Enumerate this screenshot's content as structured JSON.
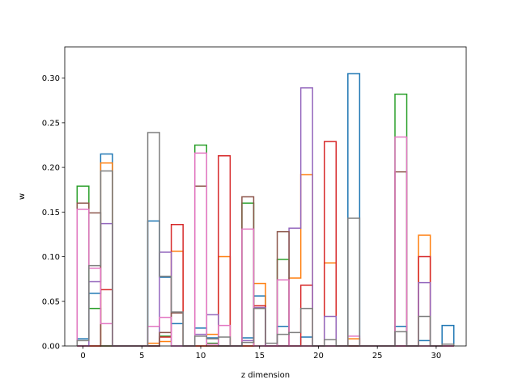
{
  "chart_data": {
    "type": "step",
    "xlabel": "z dimension",
    "ylabel": "w",
    "xlim": [
      -1.55,
      32.55
    ],
    "ylim": [
      0,
      0.335
    ],
    "xticks": [
      0,
      5,
      10,
      15,
      20,
      25,
      30
    ],
    "xtick_labels": [
      "0",
      "5",
      "10",
      "15",
      "20",
      "25",
      "30"
    ],
    "yticks": [
      0.0,
      0.05,
      0.1,
      0.15,
      0.2,
      0.25,
      0.3
    ],
    "ytick_labels": [
      "0.00",
      "0.05",
      "0.10",
      "0.15",
      "0.20",
      "0.25",
      "0.30"
    ],
    "bins": [
      0,
      1,
      2,
      3,
      4,
      5,
      6,
      7,
      8,
      9,
      10,
      11,
      12,
      13,
      14,
      15,
      16,
      17,
      18,
      19,
      20,
      21,
      22,
      23,
      24,
      25,
      26,
      27,
      28,
      29,
      30,
      31
    ],
    "series": [
      {
        "color": "#1f77b4",
        "values": [
          0.008,
          0.059,
          0.215,
          0.0,
          0.0,
          0.0,
          0.14,
          0.077,
          0.025,
          0.0,
          0.02,
          0.009,
          0.0,
          0.0,
          0.009,
          0.056,
          0.0,
          0.022,
          0.0,
          0.01,
          0.0,
          0.0,
          0.0,
          0.305,
          0.0,
          0.0,
          0.0,
          0.022,
          0.0,
          0.006,
          0.0,
          0.023
        ]
      },
      {
        "color": "#ff7f0e",
        "values": [
          0.0,
          0.0,
          0.205,
          0.0,
          0.0,
          0.0,
          0.003,
          0.005,
          0.106,
          0.0,
          0.0,
          0.013,
          0.1,
          0.0,
          0.0,
          0.07,
          0.0,
          0.0,
          0.076,
          0.192,
          0.0,
          0.093,
          0.0,
          0.008,
          0.0,
          0.0,
          0.0,
          0.0,
          0.0,
          0.124,
          0.0,
          0.0
        ]
      },
      {
        "color": "#2ca02c",
        "values": [
          0.179,
          0.042,
          0.0,
          0.0,
          0.0,
          0.0,
          0.0,
          0.011,
          0.0,
          0.0,
          0.225,
          0.003,
          0.0,
          0.0,
          0.16,
          0.0,
          0.0,
          0.097,
          0.0,
          0.0,
          0.0,
          0.0,
          0.0,
          0.0,
          0.0,
          0.0,
          0.0,
          0.282,
          0.0,
          0.0,
          0.0,
          0.0
        ]
      },
      {
        "color": "#d62728",
        "values": [
          0.0,
          0.0,
          0.063,
          0.0,
          0.0,
          0.0,
          0.0,
          0.01,
          0.136,
          0.0,
          0.0,
          0.0,
          0.213,
          0.0,
          0.0,
          0.045,
          0.0,
          0.0,
          0.0,
          0.068,
          0.0,
          0.229,
          0.0,
          0.0,
          0.0,
          0.0,
          0.0,
          0.0,
          0.0,
          0.1,
          0.0,
          0.0
        ]
      },
      {
        "color": "#9467bd",
        "values": [
          0.0,
          0.072,
          0.137,
          0.0,
          0.0,
          0.0,
          0.0,
          0.105,
          0.0,
          0.0,
          0.013,
          0.035,
          0.0,
          0.0,
          0.006,
          0.043,
          0.0,
          0.0,
          0.132,
          0.289,
          0.0,
          0.033,
          0.0,
          0.0,
          0.0,
          0.0,
          0.0,
          0.0,
          0.0,
          0.071,
          0.0,
          0.0
        ]
      },
      {
        "color": "#8c564b",
        "values": [
          0.16,
          0.149,
          0.0,
          0.0,
          0.0,
          0.0,
          0.0,
          0.015,
          0.037,
          0.0,
          0.179,
          0.0,
          0.0,
          0.0,
          0.167,
          0.0,
          0.0,
          0.128,
          0.0,
          0.0,
          0.0,
          0.0,
          0.0,
          0.0,
          0.0,
          0.0,
          0.0,
          0.195,
          0.0,
          0.0,
          0.0,
          0.0
        ]
      },
      {
        "color": "#e377c2",
        "values": [
          0.153,
          0.087,
          0.025,
          0.0,
          0.0,
          0.0,
          0.022,
          0.032,
          0.0,
          0.0,
          0.216,
          0.002,
          0.023,
          0.0,
          0.131,
          0.0,
          0.0,
          0.074,
          0.0,
          0.0,
          0.0,
          0.0,
          0.0,
          0.011,
          0.0,
          0.0,
          0.0,
          0.234,
          0.0,
          0.0,
          0.0,
          0.0
        ]
      },
      {
        "color": "#7f7f7f",
        "values": [
          0.006,
          0.09,
          0.196,
          0.0,
          0.0,
          0.0,
          0.239,
          0.078,
          0.038,
          0.0,
          0.011,
          0.008,
          0.01,
          0.0,
          0.004,
          0.042,
          0.003,
          0.013,
          0.015,
          0.042,
          0.0,
          0.007,
          0.0,
          0.143,
          0.0,
          0.0,
          0.0,
          0.016,
          0.0,
          0.033,
          0.0,
          0.002
        ]
      }
    ]
  }
}
